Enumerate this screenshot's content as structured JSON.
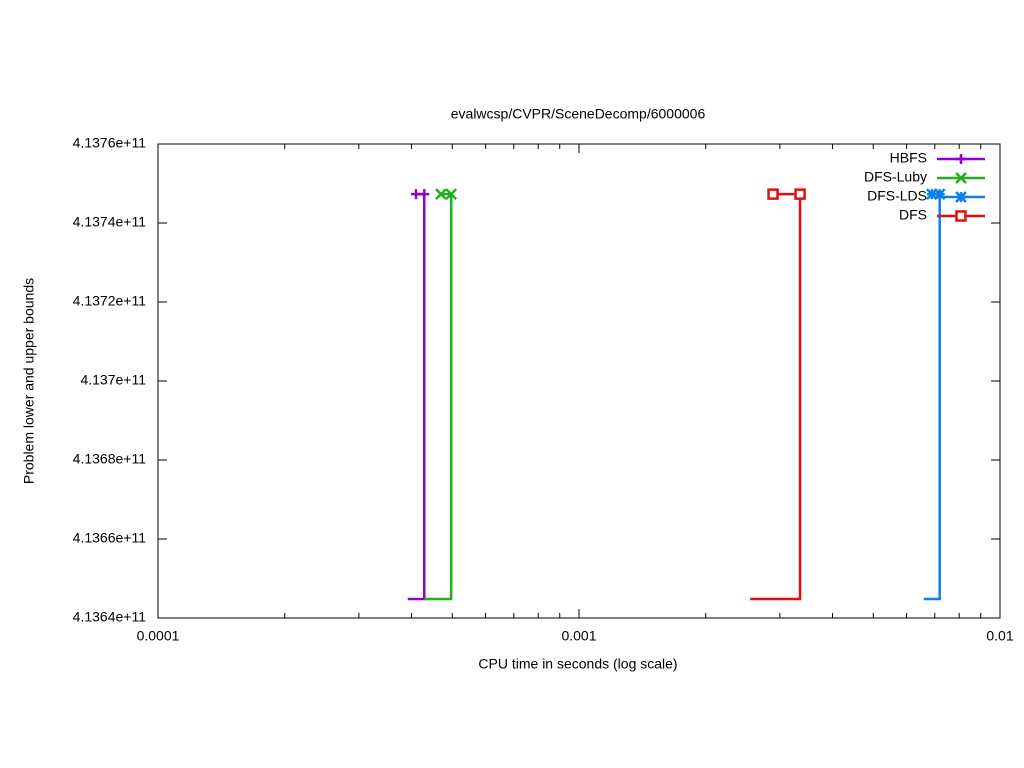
{
  "chart_data": {
    "type": "line",
    "title": "evalwcsp/CVPR/SceneDecomp/6000006",
    "xlabel": "CPU time in seconds (log scale)",
    "ylabel": "Problem lower and upper bounds",
    "xscale": "log",
    "xlim": [
      0.0001,
      0.01
    ],
    "xticks": [
      0.0001,
      0.001,
      0.01
    ],
    "ylim": [
      413640000000,
      413760000000
    ],
    "yticks": [
      {
        "value": 413640000000,
        "label": "4.1364e+11"
      },
      {
        "value": 413660000000,
        "label": "4.1366e+11"
      },
      {
        "value": 413680000000,
        "label": "4.1368e+11"
      },
      {
        "value": 413700000000,
        "label": "4.137e+11"
      },
      {
        "value": 413720000000,
        "label": "4.1372e+11"
      },
      {
        "value": 413740000000,
        "label": "4.1374e+11"
      },
      {
        "value": 413760000000,
        "label": "4.1376e+11"
      }
    ],
    "grid": false,
    "legend": "top-right",
    "series": [
      {
        "name": "HBFS",
        "color": "#9400d3",
        "marker": "plus",
        "x": [
          0.000392,
          0.000429,
          0.000429,
          0.00041
        ],
        "values": [
          413644800000,
          413644800000,
          413747300000,
          413747300000
        ]
      },
      {
        "name": "DFS-Luby",
        "color": "#1fb01f",
        "marker": "cross",
        "x": [
          0.000429,
          0.000497,
          0.000497,
          0.00047
        ],
        "values": [
          413644800000,
          413644800000,
          413747300000,
          413747300000
        ]
      },
      {
        "name": "DFS-LDS",
        "color": "#0d7fe8",
        "marker": "star",
        "x": [
          0.00659,
          0.00719,
          0.00719,
          0.00689
        ],
        "values": [
          413644800000,
          413644800000,
          413747300000,
          413747300000
        ]
      },
      {
        "name": "DFS",
        "color": "#e01010",
        "marker": "square",
        "x": [
          0.00255,
          0.00335,
          0.00335,
          0.00289
        ],
        "values": [
          413644800000,
          413644800000,
          413747300000,
          413747300000
        ]
      }
    ]
  }
}
